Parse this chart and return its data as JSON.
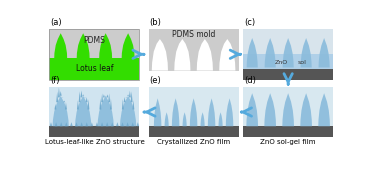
{
  "background": "#ffffff",
  "green_leaf": "#33dd00",
  "green_base": "#22bb00",
  "pdms_gray": "#cccccc",
  "pdms_dot": "#c8c8c8",
  "blue_zno": "#8bbcdc",
  "blue_light": "#b0d0e8",
  "blue_sol": "#7ab0d8",
  "substrate_gray": "#555555",
  "substrate_dark": "#444444",
  "arrow_color": "#55aadd",
  "labels": [
    "(a)",
    "(b)",
    "(c)",
    "(d)",
    "(e)",
    "(f)"
  ],
  "captions": [
    "",
    "",
    "",
    "ZnO sol-gel film",
    "Crystallized ZnO film",
    "Lotus-leaf-like ZnO structure"
  ],
  "pdms_text": "PDMS",
  "pdms_mold_text": "PDMS mold",
  "lotus_text": "Lotus leaf",
  "zno_text": "ZnO",
  "sol_text": "sol"
}
